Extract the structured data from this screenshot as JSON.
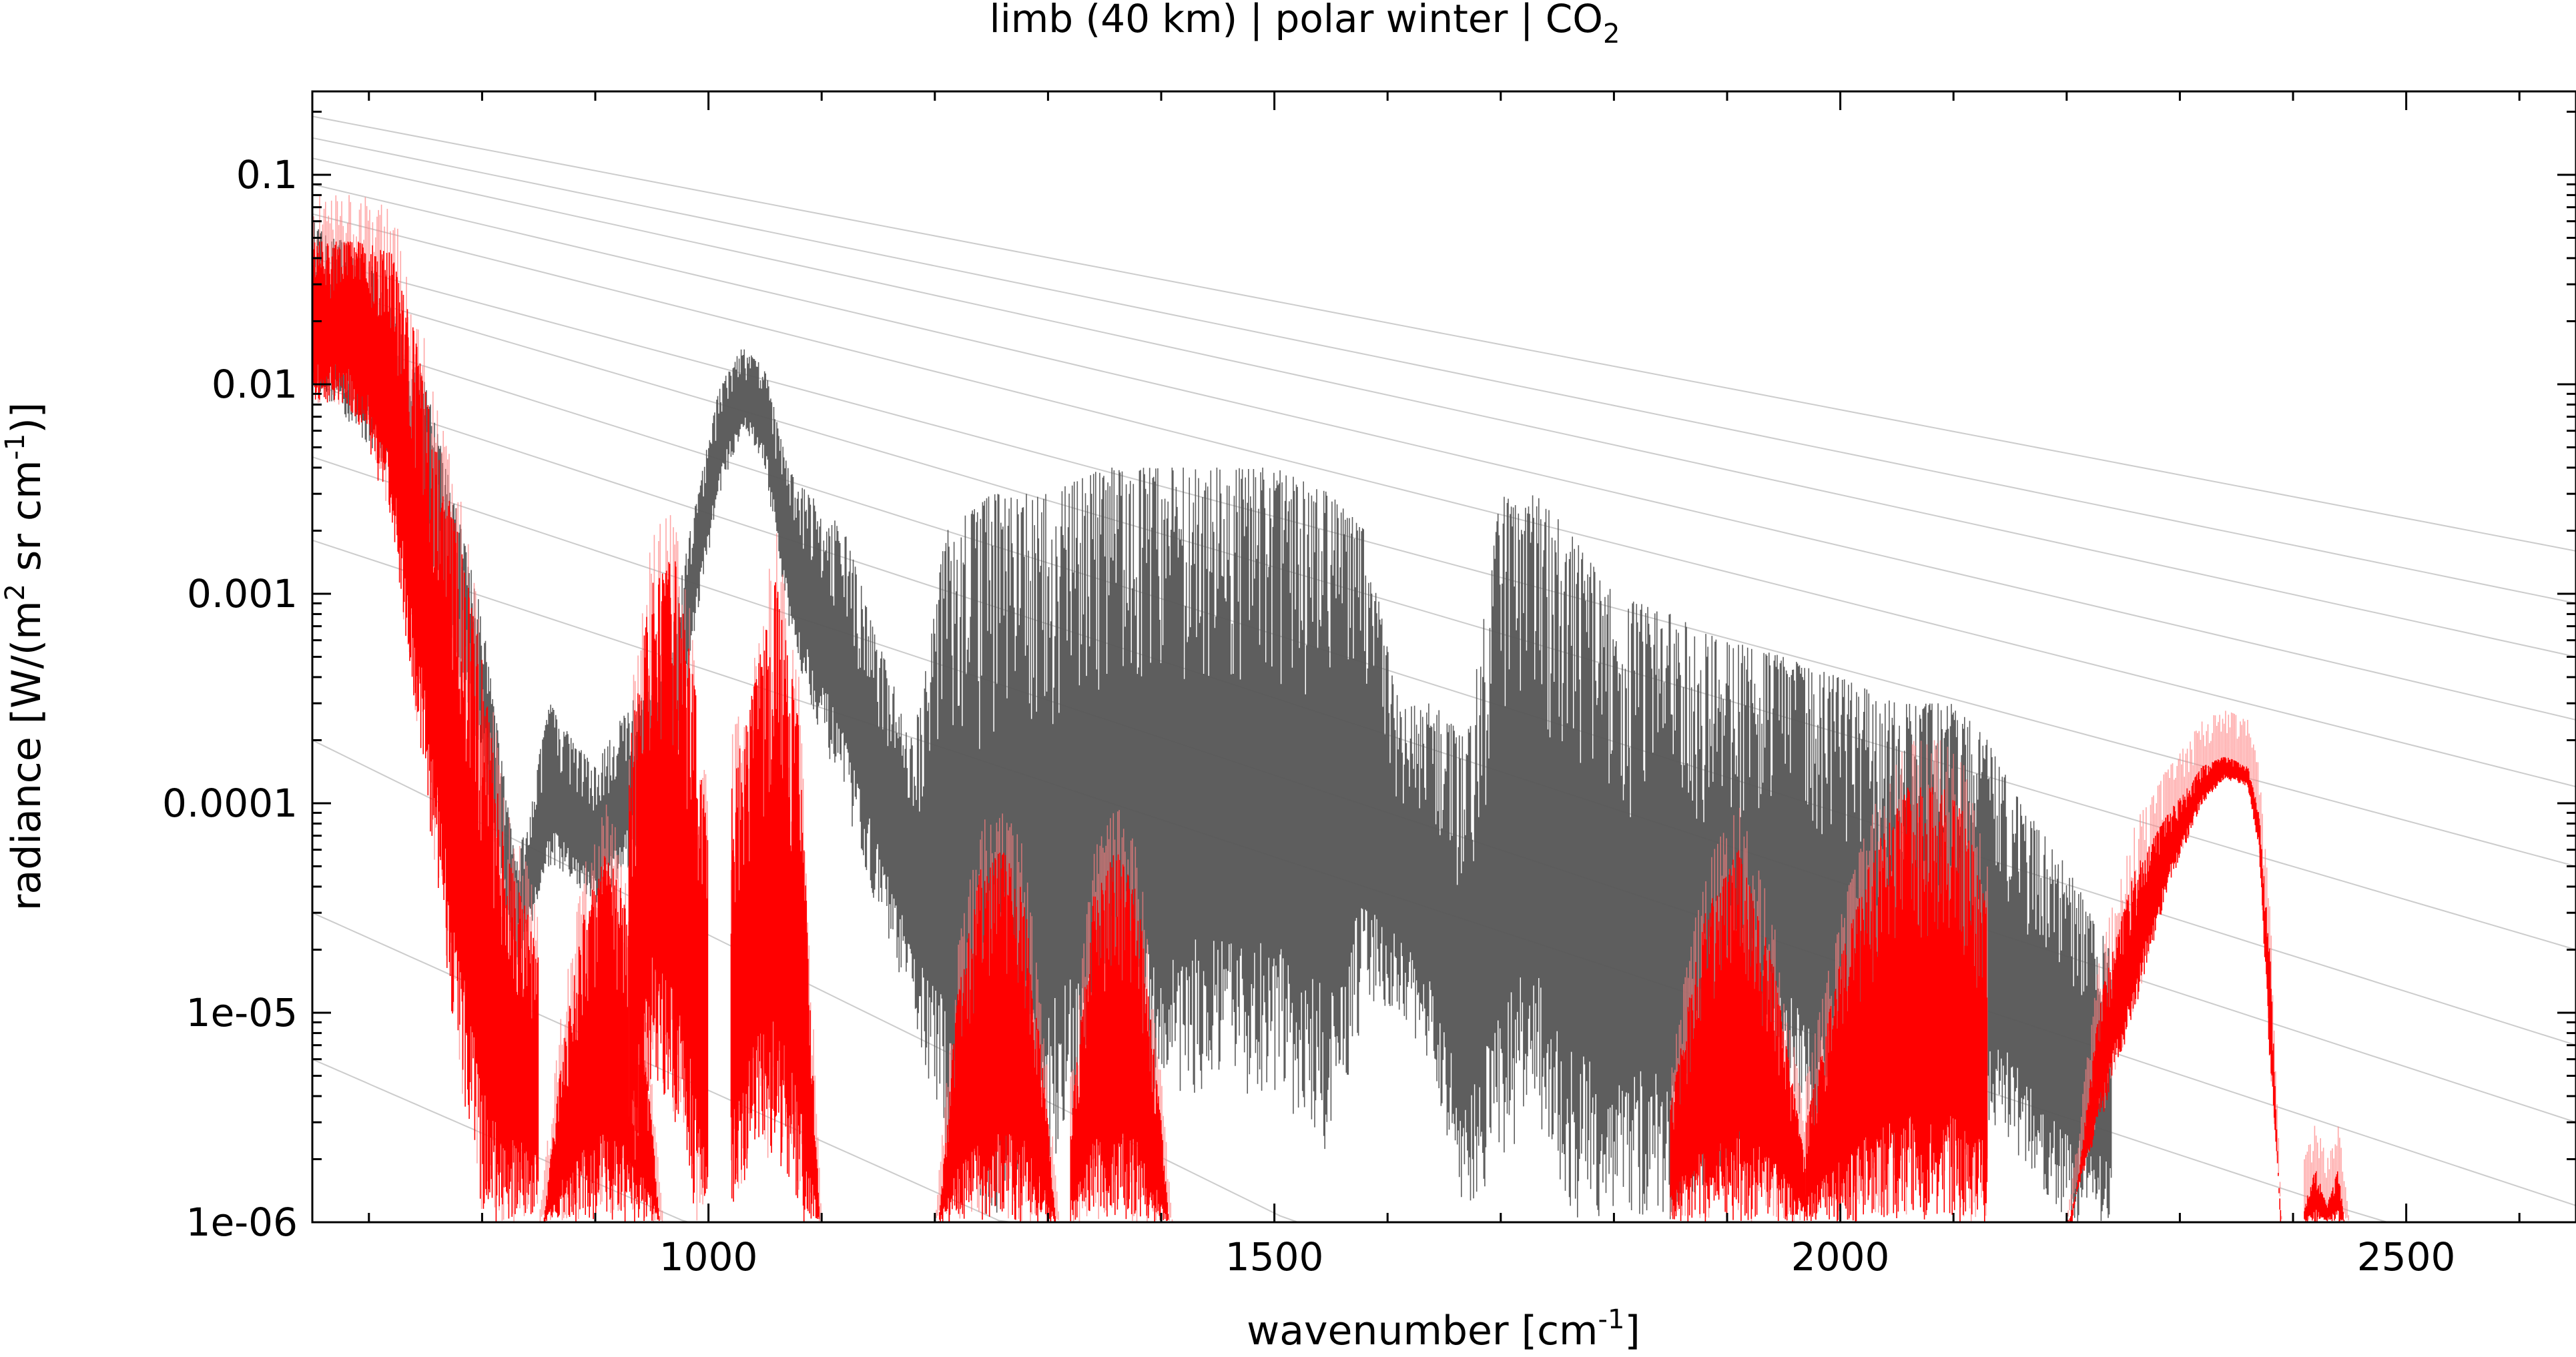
{
  "chart_data": {
    "type": "line",
    "title": {
      "prefix": "limb (40 km) | polar winter | CO",
      "subscript": "2"
    },
    "xlabel": {
      "prefix": "wavenumber [cm",
      "superscript": "-1",
      "suffix": "]"
    },
    "ylabel": {
      "part1": "radiance [W/(m",
      "sup1": "2",
      "part2": " sr cm",
      "sup2": "-1",
      "part3": ")]"
    },
    "xlim": [
      650,
      2650
    ],
    "ylim": [
      1e-06,
      0.25
    ],
    "yscale": "log",
    "grid": false,
    "legend": "none",
    "x_ticks": [
      1000,
      1500,
      2000,
      2500
    ],
    "x_tick_labels": [
      "1000",
      "1500",
      "2000",
      "2500"
    ],
    "x_minor_ticks": [
      700,
      800,
      900,
      1100,
      1200,
      1300,
      1400,
      1600,
      1700,
      1800,
      1900,
      2100,
      2200,
      2300,
      2400,
      2600
    ],
    "y_ticks": [
      0.1,
      0.01,
      0.001,
      0.0001,
      1e-05,
      1e-06
    ],
    "y_tick_labels": [
      "0.1",
      "0.01",
      "0.001",
      "0.0001",
      "1e-05",
      "1e-06"
    ],
    "colors": {
      "gray_spectrum": "#555555",
      "red_spectrum": "#ff0000",
      "red_light": "#ff8080",
      "reference_curves": "#bfbfbf"
    },
    "series": [
      {
        "color": "#555555",
        "x": [
          650,
          700,
          750,
          800,
          830,
          860,
          880,
          900,
          930,
          960,
          990,
          1010,
          1030,
          1050,
          1070,
          1090,
          1120,
          1150,
          1180,
          1210,
          1250,
          1300,
          1350,
          1400,
          1450,
          1500,
          1550,
          1580,
          1610,
          1640,
          1670,
          1700,
          1730,
          1760,
          1800,
          1850,
          1900,
          1950,
          2000,
          2050,
          2100,
          2130,
          2160,
          2200,
          2240
        ],
        "upper": [
          0.06,
          0.04,
          0.01,
          0.0008,
          5e-05,
          0.0003,
          0.0002,
          0.00015,
          0.0003,
          0.0004,
          0.003,
          0.01,
          0.015,
          0.012,
          0.004,
          0.003,
          0.002,
          0.0006,
          0.0002,
          0.002,
          0.003,
          0.003,
          0.004,
          0.004,
          0.004,
          0.004,
          0.003,
          0.002,
          0.0003,
          0.0003,
          0.0002,
          0.003,
          0.003,
          0.002,
          0.001,
          0.0008,
          0.0006,
          0.0005,
          0.0004,
          0.0003,
          0.0003,
          0.0002,
          0.0001,
          5e-05,
          2e-05
        ],
        "lower": [
          0.01,
          0.005,
          0.0015,
          0.00015,
          1.5e-05,
          5e-05,
          4e-05,
          3e-05,
          5e-05,
          5e-05,
          0.0008,
          0.003,
          0.006,
          0.004,
          0.0007,
          0.0003,
          0.0001,
          3e-05,
          1e-05,
          2e-06,
          1e-06,
          2e-06,
          3e-06,
          4e-06,
          4e-06,
          4e-06,
          2e-06,
          1e-05,
          1e-05,
          5e-06,
          1e-06,
          2e-06,
          3e-06,
          1e-06,
          1e-06,
          1e-06,
          2e-06,
          4e-06,
          2e-06,
          2e-06,
          6e-06,
          3e-06,
          2e-06,
          1e-06,
          1e-06
        ]
      },
      {
        "color": "#ff0000",
        "bands": [
          {
            "x": [
              650,
              680,
              700,
              720,
              740,
              760,
              780,
              800,
              820,
              840,
              850
            ],
            "upper": [
              0.08,
              0.08,
              0.08,
              0.07,
              0.03,
              0.008,
              0.003,
              0.0008,
              0.0001,
              5e-05,
              3e-05
            ],
            "lower": [
              0.008,
              0.008,
              0.005,
              0.002,
              0.0003,
              4e-05,
              5e-06,
              1e-06,
              1e-06,
              1e-06,
              1e-06
            ]
          },
          {
            "x": [
              850,
              870,
              890,
              910,
              930,
              950,
              960
            ],
            "upper": [
              1e-06,
              1e-05,
              5e-05,
              0.0001,
              5e-05,
              5e-06,
              1e-06
            ],
            "lower": [
              1e-06,
              1e-06,
              1e-06,
              1e-06,
              1e-06,
              1e-06,
              1e-06
            ]
          },
          {
            "x": [
              930,
              950,
              970,
              990,
              1000
            ],
            "upper": [
              0.0003,
              0.002,
              0.0025,
              0.0005,
              0.0001
            ],
            "lower": [
              1e-06,
              5e-06,
              3e-06,
              1e-06,
              1e-06
            ]
          },
          {
            "x": [
              1020,
              1040,
              1060,
              1080,
              1100
            ],
            "upper": [
              0.0002,
              0.0006,
              0.002,
              0.0004,
              1e-06
            ],
            "lower": [
              1e-06,
              2e-06,
              2e-06,
              1e-06,
              1e-06
            ]
          },
          {
            "x": [
              1200,
              1220,
              1240,
              1260,
              1280,
              1300,
              1310
            ],
            "upper": [
              1e-06,
              2e-05,
              8e-05,
              0.0001,
              6e-05,
              5e-06,
              1e-06
            ],
            "lower": [
              1e-06,
              1e-06,
              1e-06,
              1e-06,
              1e-06,
              1e-06,
              1e-06
            ]
          },
          {
            "x": [
              1320,
              1340,
              1360,
              1380,
              1400,
              1410
            ],
            "upper": [
              5e-06,
              6e-05,
              0.0001,
              6e-05,
              5e-06,
              1e-06
            ],
            "lower": [
              1e-06,
              1e-06,
              1e-06,
              1e-06,
              1e-06,
              1e-06
            ]
          },
          {
            "x": [
              1850,
              1880,
              1910,
              1940,
              1970
            ],
            "upper": [
              6e-06,
              5e-05,
              0.0001,
              3e-05,
              3e-06
            ],
            "lower": [
              1e-06,
              1e-06,
              1e-06,
              1e-06,
              1e-06
            ]
          },
          {
            "x": [
              1970,
              2000,
              2030,
              2060,
              2090,
              2110,
              2130
            ],
            "upper": [
              5e-06,
              3e-05,
              0.0001,
              0.0002,
              0.0002,
              0.00015,
              5e-05
            ],
            "lower": [
              1e-06,
              1e-06,
              1e-06,
              1e-06,
              1e-06,
              1e-06,
              1e-06
            ]
          },
          {
            "x": [
              2200,
              2230,
              2260,
              2290,
              2320,
              2340,
              2360,
              2370,
              2380,
              2390
            ],
            "upper": [
              1e-06,
              2e-05,
              8e-05,
              0.00015,
              0.00025,
              0.00028,
              0.00025,
              0.00015,
              3e-05,
              1e-06
            ],
            "lower": [
              1e-06,
              3e-06,
              1e-05,
              4e-05,
              0.0001,
              0.00013,
              0.00012,
              6e-05,
              5e-06,
              1e-06
            ]
          },
          {
            "x": [
              2410,
              2420,
              2430,
              2440,
              2450
            ],
            "upper": [
              2e-06,
              3e-06,
              2e-06,
              3e-06,
              1e-06
            ],
            "lower": [
              1e-06,
              1e-06,
              1e-06,
              1e-06,
              1e-06
            ]
          }
        ]
      }
    ],
    "reference_curves": [
      {
        "x": [
          650,
          2650
        ],
        "y": [
          0.19,
          0.0016
        ]
      },
      {
        "x": [
          650,
          2650
        ],
        "y": [
          0.15,
          0.0009
        ]
      },
      {
        "x": [
          650,
          2650
        ],
        "y": [
          0.12,
          0.0005
        ]
      },
      {
        "x": [
          650,
          2650
        ],
        "y": [
          0.09,
          0.00025
        ]
      },
      {
        "x": [
          650,
          2650
        ],
        "y": [
          0.065,
          0.00012
        ]
      },
      {
        "x": [
          650,
          2650
        ],
        "y": [
          0.04,
          5e-05
        ]
      },
      {
        "x": [
          650,
          2650
        ],
        "y": [
          0.03,
          2e-05
        ]
      },
      {
        "x": [
          650,
          2650
        ],
        "y": [
          0.018,
          7e-06
        ]
      },
      {
        "x": [
          650,
          2650
        ],
        "y": [
          0.01,
          3e-06
        ]
      },
      {
        "x": [
          650,
          2650
        ],
        "y": [
          0.0045,
          1.2e-06
        ]
      },
      {
        "x": [
          650,
          2650
        ],
        "y": [
          0.0018,
          5e-07
        ]
      },
      {
        "x": [
          650,
          1600
        ],
        "y": [
          0.0002,
          6e-07
        ]
      },
      {
        "x": [
          650,
          1300
        ],
        "y": [
          3e-05,
          8e-07
        ]
      },
      {
        "x": [
          650,
          1000
        ],
        "y": [
          6e-06,
          9e-07
        ]
      }
    ]
  }
}
